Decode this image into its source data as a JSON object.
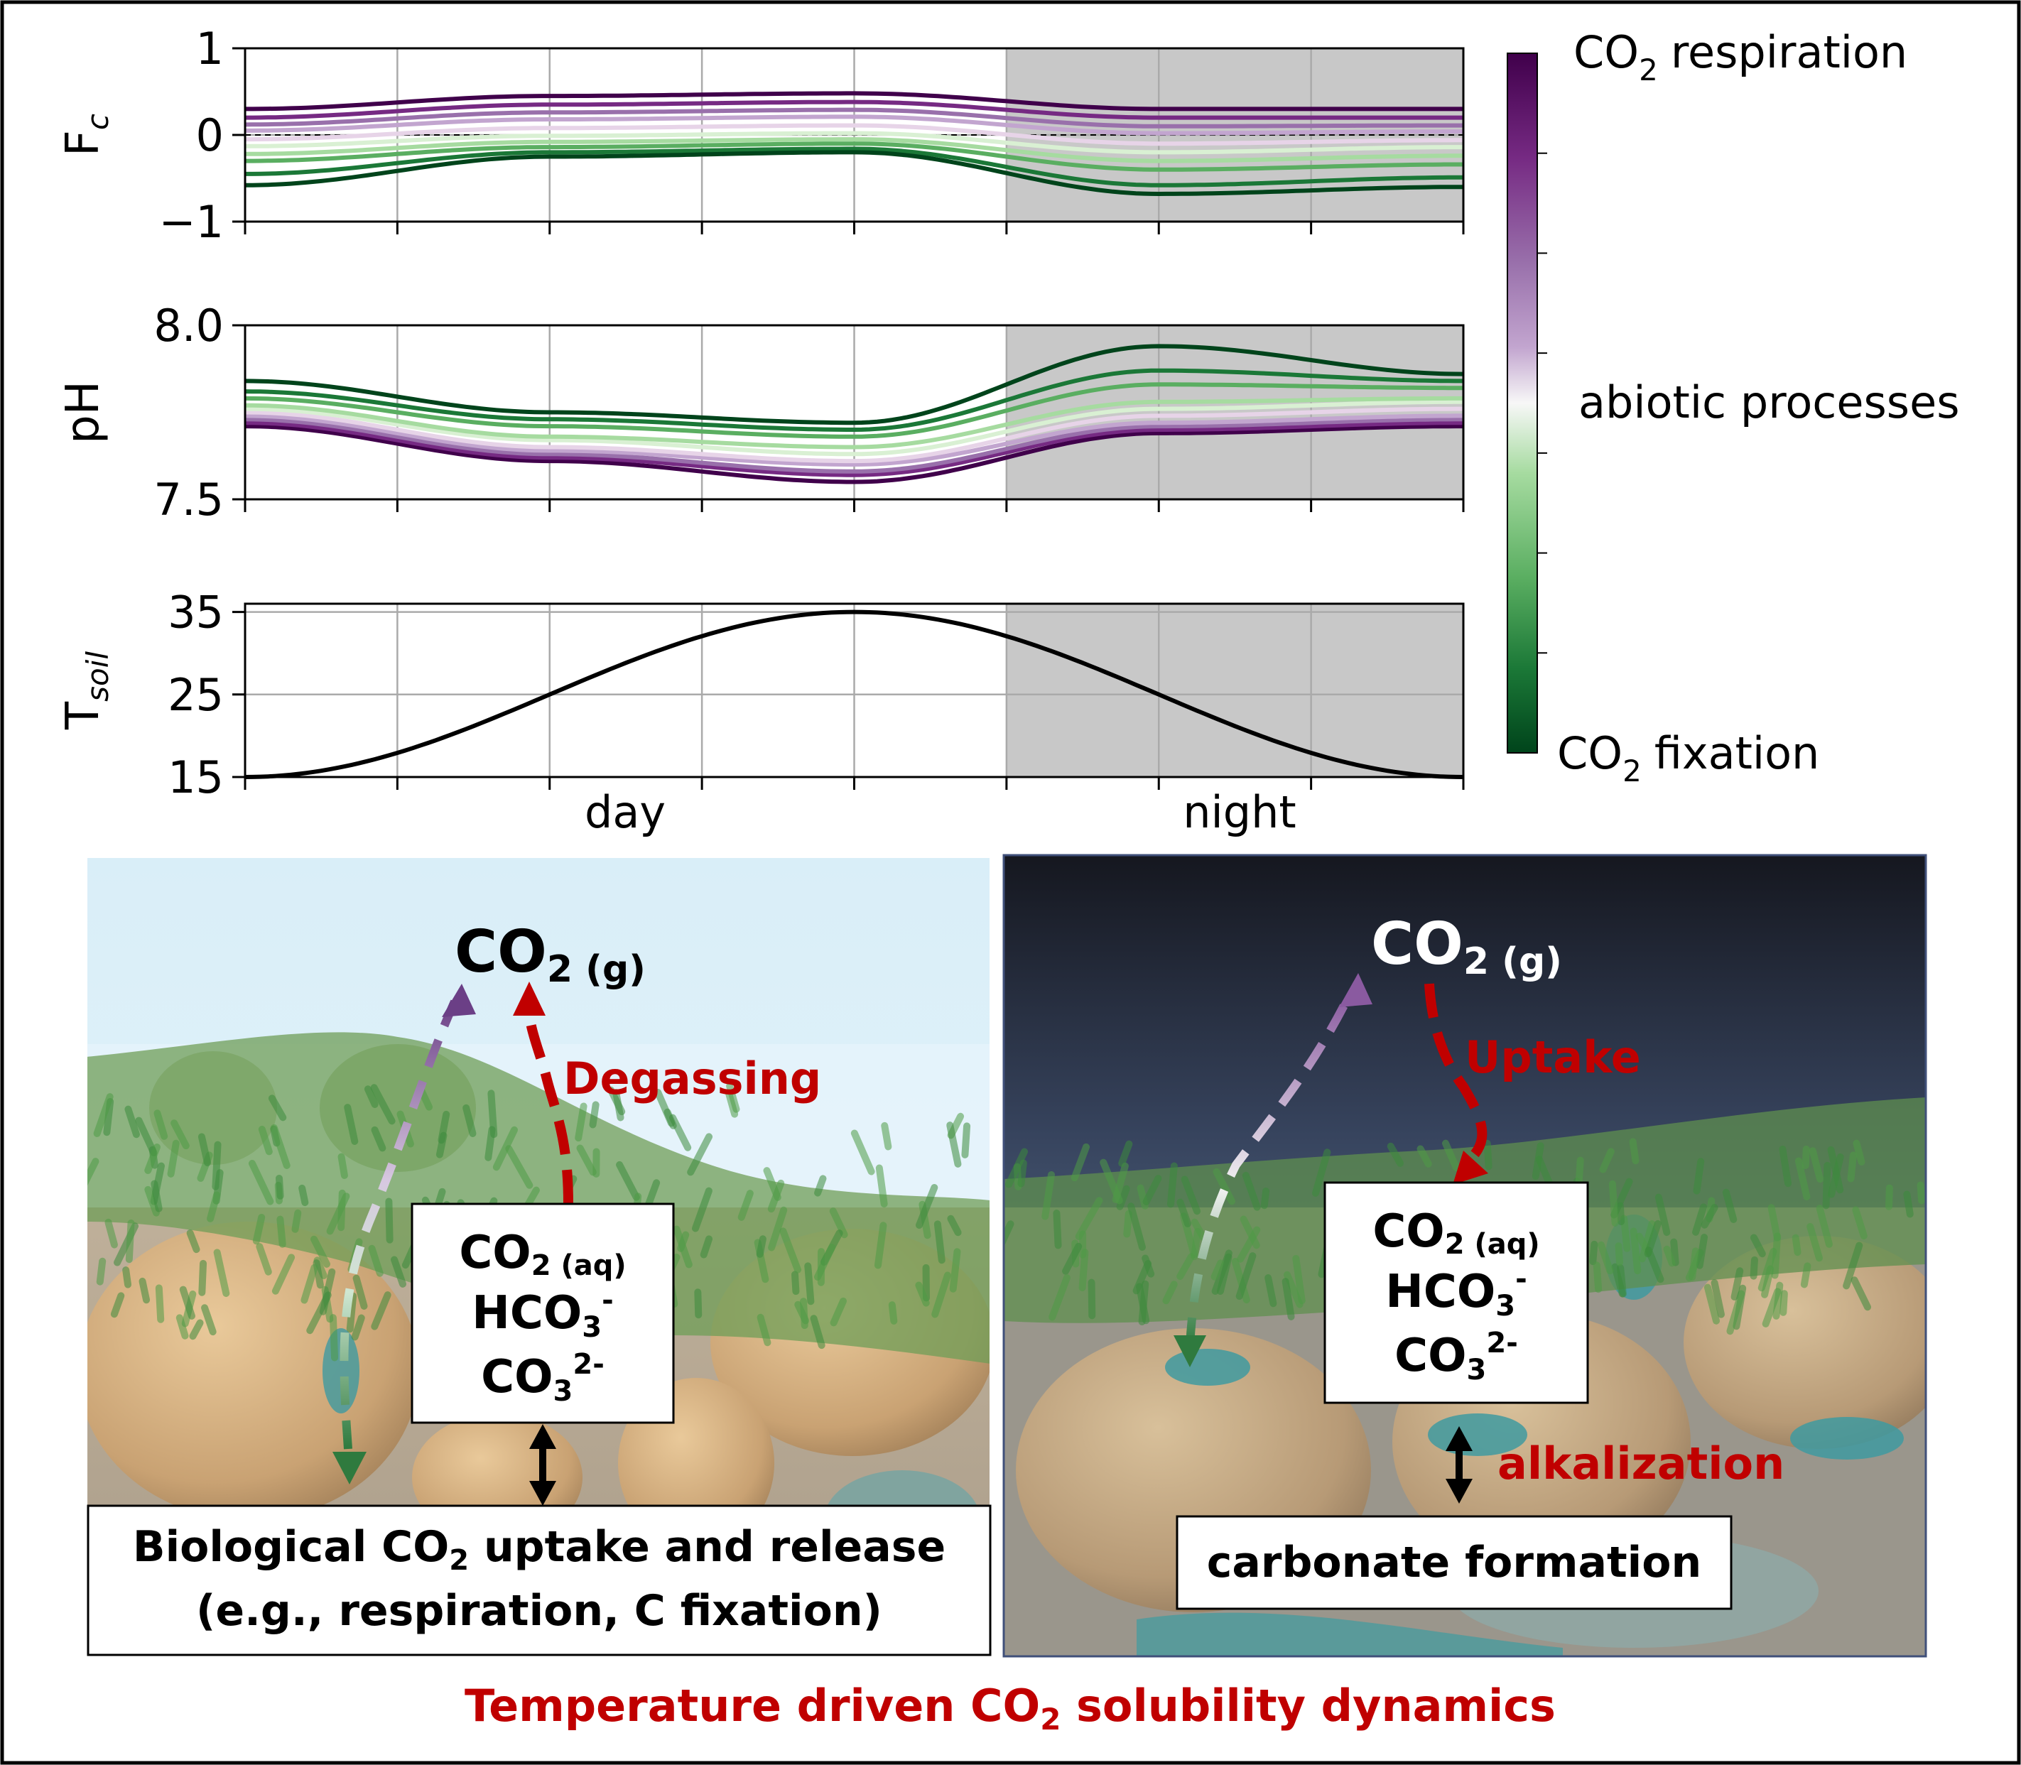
{
  "charts": {
    "fc": {
      "ylabel": "F",
      "ylabel_sub": "c",
      "yticks": [
        {
          "v": 1,
          "t": "1"
        },
        {
          "v": 0,
          "t": "0"
        },
        {
          "v": -1,
          "t": "−1"
        }
      ],
      "ylim": [
        -1,
        1
      ]
    },
    "ph": {
      "ylabel": "pH",
      "yticks": [
        {
          "v": 8.0,
          "t": "8.0"
        },
        {
          "v": 7.5,
          "t": "7.5"
        }
      ],
      "ylim": [
        7.5,
        8.0
      ]
    },
    "tsoil": {
      "ylabel": "T",
      "ylabel_sub": "soil",
      "yticks": [
        {
          "v": 35,
          "t": "35"
        },
        {
          "v": 25,
          "t": "25"
        },
        {
          "v": 15,
          "t": "15"
        }
      ],
      "ylim": [
        15,
        36
      ]
    },
    "xlabels": {
      "day": "day",
      "night": "night"
    },
    "night_start": 0.625
  },
  "chart_data": [
    {
      "type": "line",
      "ylabel": "Fc",
      "ylim": [
        -1,
        1
      ],
      "x": [
        0,
        0.25,
        0.5,
        0.75,
        1.0
      ],
      "series": [
        {
          "values": [
            0.3,
            0.45,
            0.48,
            0.3,
            0.3
          ]
        },
        {
          "values": [
            0.2,
            0.35,
            0.38,
            0.2,
            0.2
          ]
        },
        {
          "values": [
            0.12,
            0.26,
            0.29,
            0.1,
            0.11
          ]
        },
        {
          "values": [
            0.05,
            0.18,
            0.21,
            0.02,
            0.04
          ]
        },
        {
          "values": [
            -0.05,
            0.08,
            0.11,
            -0.1,
            -0.06
          ]
        },
        {
          "values": [
            -0.13,
            -0.01,
            0.02,
            -0.2,
            -0.14
          ]
        },
        {
          "values": [
            -0.22,
            -0.08,
            -0.05,
            -0.3,
            -0.24
          ]
        },
        {
          "values": [
            -0.3,
            -0.14,
            -0.1,
            -0.4,
            -0.34
          ]
        },
        {
          "values": [
            -0.45,
            -0.2,
            -0.16,
            -0.58,
            -0.49
          ]
        },
        {
          "values": [
            -0.58,
            -0.25,
            -0.2,
            -0.68,
            -0.6
          ]
        }
      ]
    },
    {
      "type": "line",
      "ylabel": "pH",
      "ylim": [
        7.5,
        8.0
      ],
      "x": [
        0,
        0.25,
        0.5,
        0.75,
        1.0
      ],
      "series": [
        {
          "values": [
            7.71,
            7.61,
            7.55,
            7.69,
            7.71
          ]
        },
        {
          "values": [
            7.72,
            7.62,
            7.57,
            7.7,
            7.72
          ]
        },
        {
          "values": [
            7.73,
            7.63,
            7.58,
            7.71,
            7.73
          ]
        },
        {
          "values": [
            7.74,
            7.64,
            7.6,
            7.72,
            7.74
          ]
        },
        {
          "values": [
            7.75,
            7.65,
            7.61,
            7.74,
            7.76
          ]
        },
        {
          "values": [
            7.76,
            7.67,
            7.63,
            7.76,
            7.78
          ]
        },
        {
          "values": [
            7.77,
            7.68,
            7.65,
            7.78,
            7.79
          ]
        },
        {
          "values": [
            7.79,
            7.71,
            7.68,
            7.83,
            7.82
          ]
        },
        {
          "values": [
            7.81,
            7.73,
            7.7,
            7.87,
            7.84
          ]
        },
        {
          "values": [
            7.84,
            7.75,
            7.72,
            7.94,
            7.86
          ]
        }
      ]
    },
    {
      "type": "line",
      "ylabel": "Tsoil",
      "ylim": [
        15,
        36
      ],
      "x": [
        0,
        0.5,
        1.0
      ],
      "series": [
        {
          "values": [
            15,
            35,
            15
          ]
        }
      ]
    }
  ],
  "colorbar": {
    "top_label": "respiration",
    "mid_label": "abiotic processes",
    "bottom_label": "fixation",
    "co2": "CO",
    "sub2": "2"
  },
  "colors": {
    "purple_dark": "#40004b",
    "white_mid": "#f7f7f7",
    "green_dark": "#00441b",
    "night_shade": "#c8c8c8",
    "accent_red": "#c00000"
  },
  "day_panel": {
    "co2_gas_main": "CO",
    "co2_gas_sub": "2 (g)",
    "flux_label": "Degassing",
    "species": {
      "co2_main": "CO",
      "co2_sub": "2 (aq)",
      "hco3_main": "HCO",
      "hco3_sub": "3",
      "hco3_sup": "-",
      "co3_main": "CO",
      "co3_sub": "3",
      "co3_sup": "2-"
    },
    "bio_box_line1_a": "Biological CO",
    "bio_box_line1_sub": "2",
    "bio_box_line1_b": " uptake and release",
    "bio_box_line2": "(e.g., respiration, C fixation)"
  },
  "night_panel": {
    "co2_gas_main": "CO",
    "co2_gas_sub": "2 (g)",
    "flux_label": "Uptake",
    "species": {
      "co2_main": "CO",
      "co2_sub": "2 (aq)",
      "hco3_main": "HCO",
      "hco3_sub": "3",
      "hco3_sup": "-",
      "co3_main": "CO",
      "co3_sub": "3",
      "co3_sup": "2-"
    },
    "alk_label": "alkalization",
    "carbonate_box": "carbonate formation"
  },
  "footer": {
    "title_a": "Temperature driven CO",
    "title_sub": "2",
    "title_b": " solubility dynamics"
  }
}
